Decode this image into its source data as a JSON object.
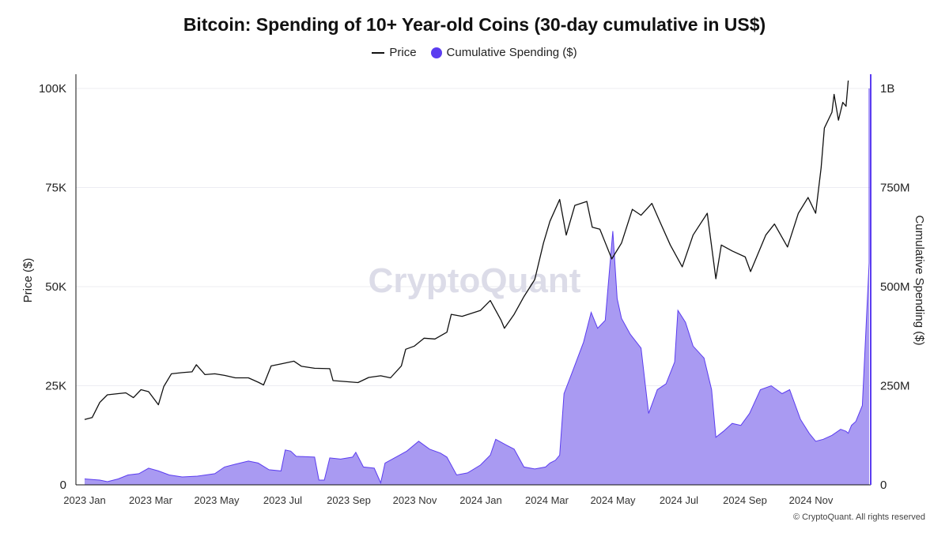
{
  "chart_data": {
    "type": "line+area",
    "title": "Bitcoin: Spending of 10+ Year-old Coins (30-day cumulative in US$)",
    "legend": [
      "Price",
      "Cumulative Spending ($)"
    ],
    "watermark": "CryptoQuant",
    "credit": "© CryptoQuant. All rights reserved",
    "x_ticks": [
      "2023 Jan",
      "2023 Mar",
      "2023 May",
      "2023 Jul",
      "2023 Sep",
      "2023 Nov",
      "2024 Jan",
      "2024 Mar",
      "2024 May",
      "2024 Jul",
      "2024 Sep",
      "2024 Nov"
    ],
    "x_range": [
      "2023-01-01",
      "2024-12-05"
    ],
    "y_left": {
      "label": "Price ($)",
      "ticks": [
        "0",
        "25K",
        "50K",
        "75K",
        "100K"
      ],
      "range": [
        0,
        100000
      ]
    },
    "y_right": {
      "label": "Cumulative Spending ($)",
      "ticks": [
        "0",
        "250M",
        "500M",
        "750M",
        "1B"
      ],
      "range": [
        0,
        1000000000
      ]
    },
    "colors": {
      "price": "#111111",
      "spending_fill": "#a99af2",
      "spending_line": "#5b3df0"
    },
    "series": [
      {
        "name": "Price",
        "axis": "left",
        "points": [
          [
            "2023-01-01",
            16500
          ],
          [
            "2023-01-08",
            17000
          ],
          [
            "2023-01-15",
            20800
          ],
          [
            "2023-01-22",
            22700
          ],
          [
            "2023-02-01",
            23000
          ],
          [
            "2023-02-08",
            23200
          ],
          [
            "2023-02-15",
            22000
          ],
          [
            "2023-02-22",
            24000
          ],
          [
            "2023-03-01",
            23500
          ],
          [
            "2023-03-10",
            20200
          ],
          [
            "2023-03-15",
            24800
          ],
          [
            "2023-03-22",
            28000
          ],
          [
            "2023-04-01",
            28300
          ],
          [
            "2023-04-10",
            28500
          ],
          [
            "2023-04-14",
            30300
          ],
          [
            "2023-04-22",
            27800
          ],
          [
            "2023-05-01",
            28000
          ],
          [
            "2023-05-10",
            27600
          ],
          [
            "2023-05-20",
            27000
          ],
          [
            "2023-06-01",
            27000
          ],
          [
            "2023-06-10",
            25900
          ],
          [
            "2023-06-15",
            25200
          ],
          [
            "2023-06-22",
            30000
          ],
          [
            "2023-07-01",
            30500
          ],
          [
            "2023-07-13",
            31200
          ],
          [
            "2023-07-20",
            29900
          ],
          [
            "2023-08-01",
            29400
          ],
          [
            "2023-08-15",
            29300
          ],
          [
            "2023-08-18",
            26300
          ],
          [
            "2023-09-01",
            26000
          ],
          [
            "2023-09-10",
            25800
          ],
          [
            "2023-09-20",
            27100
          ],
          [
            "2023-10-01",
            27500
          ],
          [
            "2023-10-10",
            27000
          ],
          [
            "2023-10-20",
            30000
          ],
          [
            "2023-10-24",
            34200
          ],
          [
            "2023-11-01",
            35000
          ],
          [
            "2023-11-10",
            37000
          ],
          [
            "2023-11-20",
            36800
          ],
          [
            "2023-12-01",
            38500
          ],
          [
            "2023-12-05",
            43000
          ],
          [
            "2023-12-15",
            42500
          ],
          [
            "2024-01-01",
            44000
          ],
          [
            "2024-01-10",
            46500
          ],
          [
            "2024-01-20",
            41500
          ],
          [
            "2024-01-23",
            39500
          ],
          [
            "2024-02-01",
            43000
          ],
          [
            "2024-02-10",
            47500
          ],
          [
            "2024-02-20",
            51800
          ],
          [
            "2024-02-28",
            61000
          ],
          [
            "2024-03-05",
            66500
          ],
          [
            "2024-03-14",
            72000
          ],
          [
            "2024-03-20",
            63000
          ],
          [
            "2024-03-28",
            70500
          ],
          [
            "2024-04-08",
            71500
          ],
          [
            "2024-04-13",
            65000
          ],
          [
            "2024-04-20",
            64500
          ],
          [
            "2024-05-01",
            57000
          ],
          [
            "2024-05-10",
            61000
          ],
          [
            "2024-05-20",
            69500
          ],
          [
            "2024-05-28",
            68000
          ],
          [
            "2024-06-07",
            71000
          ],
          [
            "2024-06-15",
            66000
          ],
          [
            "2024-06-24",
            60500
          ],
          [
            "2024-07-05",
            55000
          ],
          [
            "2024-07-15",
            63000
          ],
          [
            "2024-07-28",
            68500
          ],
          [
            "2024-08-05",
            52000
          ],
          [
            "2024-08-10",
            60500
          ],
          [
            "2024-08-20",
            59000
          ],
          [
            "2024-09-01",
            57500
          ],
          [
            "2024-09-06",
            53800
          ],
          [
            "2024-09-20",
            63000
          ],
          [
            "2024-09-28",
            65800
          ],
          [
            "2024-10-10",
            60000
          ],
          [
            "2024-10-20",
            68500
          ],
          [
            "2024-10-29",
            72500
          ],
          [
            "2024-11-05",
            68500
          ],
          [
            "2024-11-10",
            80000
          ],
          [
            "2024-11-13",
            90000
          ],
          [
            "2024-11-20",
            94000
          ],
          [
            "2024-11-22",
            98500
          ],
          [
            "2024-11-26",
            92000
          ],
          [
            "2024-11-30",
            96500
          ],
          [
            "2024-12-03",
            95500
          ],
          [
            "2024-12-05",
            102000
          ]
        ]
      },
      {
        "name": "Cumulative Spending ($)",
        "axis": "right",
        "points": [
          [
            "2023-01-01",
            15000000
          ],
          [
            "2023-01-15",
            12000000
          ],
          [
            "2023-01-22",
            8000000
          ],
          [
            "2023-02-01",
            15000000
          ],
          [
            "2023-02-10",
            25000000
          ],
          [
            "2023-02-20",
            28000000
          ],
          [
            "2023-03-01",
            42000000
          ],
          [
            "2023-03-10",
            35000000
          ],
          [
            "2023-03-20",
            25000000
          ],
          [
            "2023-04-01",
            20000000
          ],
          [
            "2023-04-15",
            22000000
          ],
          [
            "2023-05-01",
            28000000
          ],
          [
            "2023-05-10",
            45000000
          ],
          [
            "2023-05-20",
            52000000
          ],
          [
            "2023-06-01",
            60000000
          ],
          [
            "2023-06-10",
            55000000
          ],
          [
            "2023-06-20",
            38000000
          ],
          [
            "2023-07-01",
            35000000
          ],
          [
            "2023-07-05",
            88000000
          ],
          [
            "2023-07-10",
            85000000
          ],
          [
            "2023-07-15",
            72000000
          ],
          [
            "2023-08-01",
            70000000
          ],
          [
            "2023-08-05",
            12000000
          ],
          [
            "2023-08-10",
            12000000
          ],
          [
            "2023-08-15",
            68000000
          ],
          [
            "2023-08-25",
            65000000
          ],
          [
            "2023-09-05",
            70000000
          ],
          [
            "2023-09-08",
            82000000
          ],
          [
            "2023-09-15",
            45000000
          ],
          [
            "2023-09-25",
            42000000
          ],
          [
            "2023-10-01",
            5000000
          ],
          [
            "2023-10-05",
            55000000
          ],
          [
            "2023-10-15",
            70000000
          ],
          [
            "2023-10-25",
            85000000
          ],
          [
            "2023-11-05",
            110000000
          ],
          [
            "2023-11-15",
            90000000
          ],
          [
            "2023-11-25",
            80000000
          ],
          [
            "2023-12-01",
            70000000
          ],
          [
            "2023-12-10",
            25000000
          ],
          [
            "2023-12-20",
            30000000
          ],
          [
            "2024-01-01",
            50000000
          ],
          [
            "2024-01-10",
            75000000
          ],
          [
            "2024-01-15",
            115000000
          ],
          [
            "2024-01-25",
            100000000
          ],
          [
            "2024-02-01",
            90000000
          ],
          [
            "2024-02-10",
            45000000
          ],
          [
            "2024-02-20",
            40000000
          ],
          [
            "2024-03-01",
            45000000
          ],
          [
            "2024-03-05",
            55000000
          ],
          [
            "2024-03-10",
            62000000
          ],
          [
            "2024-03-14",
            75000000
          ],
          [
            "2024-03-18",
            230000000
          ],
          [
            "2024-03-25",
            280000000
          ],
          [
            "2024-04-05",
            360000000
          ],
          [
            "2024-04-12",
            435000000
          ],
          [
            "2024-04-18",
            395000000
          ],
          [
            "2024-04-25",
            415000000
          ],
          [
            "2024-05-02",
            640000000
          ],
          [
            "2024-05-06",
            470000000
          ],
          [
            "2024-05-10",
            420000000
          ],
          [
            "2024-05-18",
            380000000
          ],
          [
            "2024-05-28",
            345000000
          ],
          [
            "2024-06-01",
            250000000
          ],
          [
            "2024-06-04",
            180000000
          ],
          [
            "2024-06-12",
            240000000
          ],
          [
            "2024-06-20",
            255000000
          ],
          [
            "2024-06-28",
            310000000
          ],
          [
            "2024-07-01",
            440000000
          ],
          [
            "2024-07-08",
            410000000
          ],
          [
            "2024-07-15",
            350000000
          ],
          [
            "2024-07-25",
            320000000
          ],
          [
            "2024-08-01",
            240000000
          ],
          [
            "2024-08-05",
            120000000
          ],
          [
            "2024-08-12",
            135000000
          ],
          [
            "2024-08-20",
            155000000
          ],
          [
            "2024-08-28",
            150000000
          ],
          [
            "2024-09-05",
            180000000
          ],
          [
            "2024-09-15",
            240000000
          ],
          [
            "2024-09-25",
            250000000
          ],
          [
            "2024-10-05",
            230000000
          ],
          [
            "2024-10-12",
            240000000
          ],
          [
            "2024-10-22",
            165000000
          ],
          [
            "2024-10-30",
            130000000
          ],
          [
            "2024-11-05",
            110000000
          ],
          [
            "2024-11-12",
            115000000
          ],
          [
            "2024-11-20",
            125000000
          ],
          [
            "2024-11-28",
            140000000
          ],
          [
            "2024-12-03",
            135000000
          ],
          [
            "2024-12-05",
            130000000
          ],
          [
            "2024-12-08",
            150000000
          ],
          [
            "2024-12-12",
            160000000
          ],
          [
            "2024-12-18",
            200000000
          ],
          [
            "2024-12-25",
            560000000
          ],
          [
            "2025-01-01",
            625000000
          ],
          [
            "2025-01-05",
            1000000000
          ]
        ]
      }
    ]
  }
}
